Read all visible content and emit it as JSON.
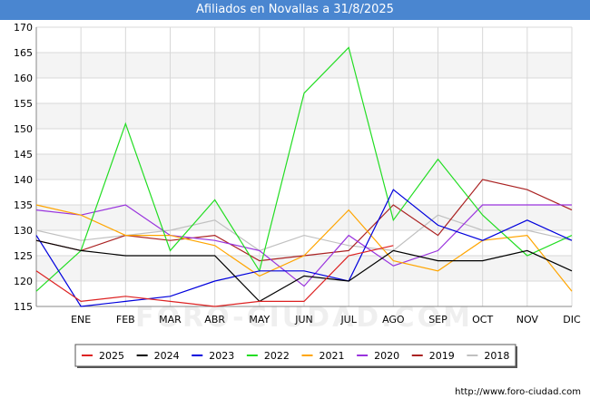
{
  "header": {
    "title": "Afiliados en Novallas a 31/8/2025"
  },
  "footer": {
    "url": "http://www.foro-ciudad.com"
  },
  "watermark": "FORO-CIUDAD.COM",
  "chart_data": {
    "type": "line",
    "title": "Afiliados en Novallas a 31/8/2025",
    "x_ticks": [
      "ENE",
      "FEB",
      "MAR",
      "ABR",
      "MAY",
      "JUN",
      "JUL",
      "AGO",
      "SEP",
      "OCT",
      "NOV",
      "DIC"
    ],
    "ylim": [
      115,
      170
    ],
    "y_ticks": [
      115,
      120,
      125,
      130,
      135,
      140,
      145,
      150,
      155,
      160,
      165,
      170
    ],
    "grid": true,
    "legend_position": "bottom",
    "series": [
      {
        "name": "2025",
        "color": "#dd2222",
        "values": [
          122,
          116,
          117,
          116,
          115,
          116,
          116,
          125,
          127
        ]
      },
      {
        "name": "2024",
        "color": "#000000",
        "values": [
          128,
          126,
          125,
          125,
          125,
          116,
          121,
          120,
          126,
          124,
          124,
          126,
          122
        ]
      },
      {
        "name": "2023",
        "color": "#0000dd",
        "values": [
          129,
          115,
          116,
          117,
          120,
          122,
          122,
          120,
          138,
          131,
          128,
          132,
          128
        ]
      },
      {
        "name": "2022",
        "color": "#22dd22",
        "values": [
          118,
          126,
          151,
          126,
          136,
          122,
          157,
          166,
          132,
          144,
          133,
          125,
          129
        ]
      },
      {
        "name": "2021",
        "color": "#ffa500",
        "values": [
          135,
          133,
          129,
          129,
          127,
          121,
          125,
          134,
          124,
          122,
          128,
          129,
          118
        ]
      },
      {
        "name": "2020",
        "color": "#9933dd",
        "values": [
          134,
          133,
          135,
          129,
          128,
          126,
          119,
          129,
          123,
          126,
          135,
          135,
          135
        ]
      },
      {
        "name": "2019",
        "color": "#aa2222",
        "values": [
          128,
          126,
          129,
          128,
          129,
          124,
          125,
          126,
          135,
          129,
          140,
          138,
          134
        ]
      },
      {
        "name": "2018",
        "color": "#c0c0c0",
        "values": [
          130,
          128,
          129,
          130,
          132,
          126,
          129,
          127,
          126,
          133,
          130,
          130,
          128
        ]
      }
    ]
  }
}
